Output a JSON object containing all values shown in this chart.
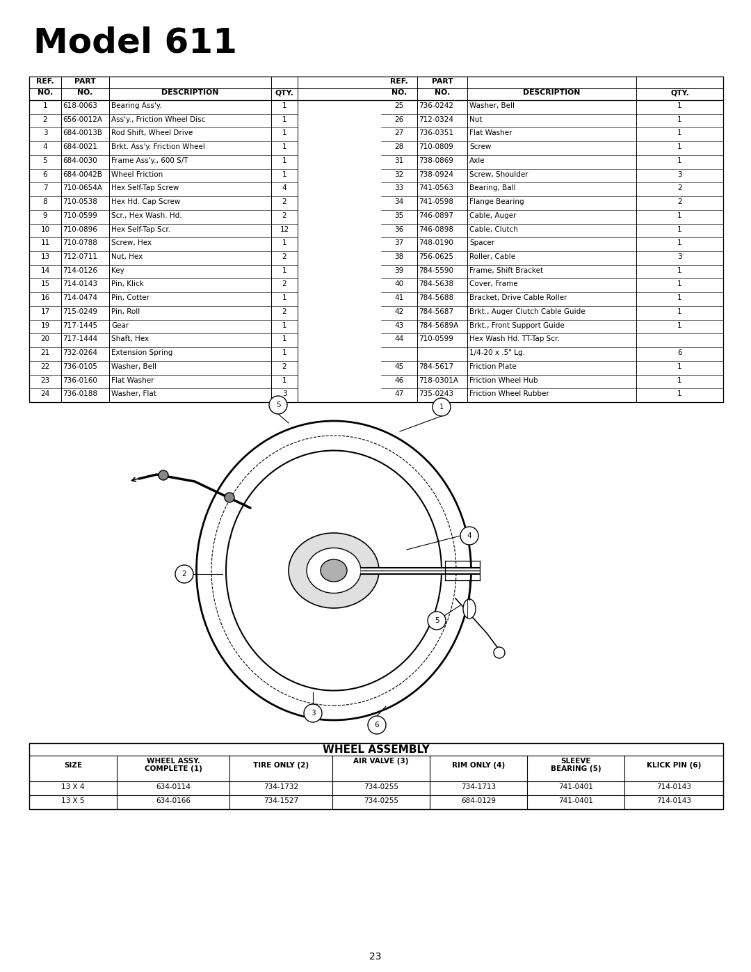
{
  "title": "Model 611",
  "page_number": "23",
  "table_left": [
    [
      "1",
      "618-0063",
      "Bearing Ass'y.",
      "1"
    ],
    [
      "2",
      "656-0012A",
      "Ass'y., Friction Wheel Disc",
      "1"
    ],
    [
      "3",
      "684-0013B",
      "Rod Shift, Wheel Drive",
      "1"
    ],
    [
      "4",
      "684-0021",
      "Brkt. Ass'y. Friction Wheel",
      "1"
    ],
    [
      "5",
      "684-0030",
      "Frame Ass'y., 600 S/T",
      "1"
    ],
    [
      "6",
      "684-0042B",
      "Wheel Friction",
      "1"
    ],
    [
      "7",
      "710-0654A",
      "Hex Self-Tap Screw",
      "4"
    ],
    [
      "8",
      "710-0538",
      "Hex Hd. Cap Screw",
      "2"
    ],
    [
      "9",
      "710-0599",
      "Scr., Hex Wash. Hd.",
      "2"
    ],
    [
      "10",
      "710-0896",
      "Hex Self-Tap Scr.",
      "12"
    ],
    [
      "11",
      "710-0788",
      "Screw, Hex",
      "1"
    ],
    [
      "13",
      "712-0711",
      "Nut, Hex",
      "2"
    ],
    [
      "14",
      "714-0126",
      "Key",
      "1"
    ],
    [
      "15",
      "714-0143",
      "Pin, Klick",
      "2"
    ],
    [
      "16",
      "714-0474",
      "Pin, Cotter",
      "1"
    ],
    [
      "17",
      "715-0249",
      "Pin, Roll",
      "2"
    ],
    [
      "19",
      "717-1445",
      "Gear",
      "1"
    ],
    [
      "20",
      "717-1444",
      "Shaft, Hex",
      "1"
    ],
    [
      "21",
      "732-0264",
      "Extension Spring",
      "1"
    ],
    [
      "22",
      "736-0105",
      "Washer, Bell",
      "2"
    ],
    [
      "23",
      "736-0160",
      "Flat Washer",
      "1"
    ],
    [
      "24",
      "736-0188",
      "Washer, Flat",
      "3"
    ]
  ],
  "table_right": [
    [
      "25",
      "736-0242",
      "Washer, Bell",
      "1"
    ],
    [
      "26",
      "712-0324",
      "Nut",
      "1"
    ],
    [
      "27",
      "736-0351",
      "Flat Washer",
      "1"
    ],
    [
      "28",
      "710-0809",
      "Screw",
      "1"
    ],
    [
      "31",
      "738-0869",
      "Axle",
      "1"
    ],
    [
      "32",
      "738-0924",
      "Screw, Shoulder",
      "3"
    ],
    [
      "33",
      "741-0563",
      "Bearing, Ball",
      "2"
    ],
    [
      "34",
      "741-0598",
      "Flange Bearing",
      "2"
    ],
    [
      "35",
      "746-0897",
      "Cable, Auger",
      "1"
    ],
    [
      "36",
      "746-0898",
      "Cable, Clutch",
      "1"
    ],
    [
      "37",
      "748-0190",
      "Spacer",
      "1"
    ],
    [
      "38",
      "756-0625",
      "Roller, Cable",
      "3"
    ],
    [
      "39",
      "784-5590",
      "Frame, Shift Bracket",
      "1"
    ],
    [
      "40",
      "784-5638",
      "Cover, Frame",
      "1"
    ],
    [
      "41",
      "784-5688",
      "Bracket, Drive Cable Roller",
      "1"
    ],
    [
      "42",
      "784-5687",
      "Brkt., Auger Clutch Cable Guide",
      "1"
    ],
    [
      "43",
      "784-5689A",
      "Brkt., Front Support Guide",
      "1"
    ],
    [
      "44",
      "710-0599",
      "Hex Wash Hd. TT-Tap Scr.",
      ""
    ],
    [
      "",
      "",
      "1/4-20 x .5\" Lg.",
      "6"
    ],
    [
      "45",
      "784-5617",
      "Friction Plate",
      "1"
    ],
    [
      "46",
      "718-0301A",
      "Friction Wheel Hub",
      "1"
    ],
    [
      "47",
      "735-0243",
      "Friction Wheel Rubber",
      "1"
    ]
  ],
  "wheel_assy_rows": [
    [
      "13 X 4",
      "634-0114",
      "734-1732",
      "734-0255",
      "734-1713",
      "741-0401",
      "714-0143"
    ],
    [
      "13 X 5",
      "634-0166",
      "734-1527",
      "734-0255",
      "684-0129",
      "741-0401",
      "714-0143"
    ]
  ]
}
